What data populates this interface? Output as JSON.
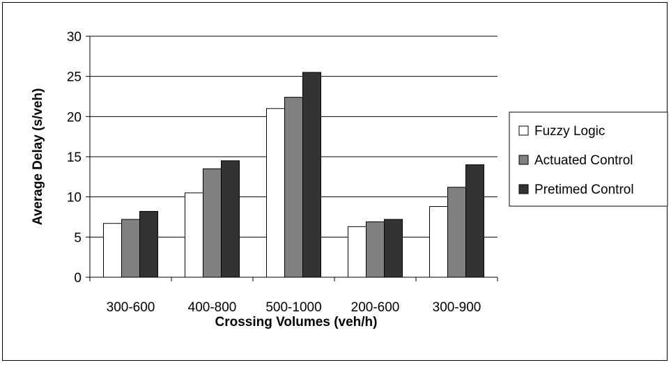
{
  "chart_data": {
    "type": "bar",
    "title": "",
    "xlabel": "Crossing Volumes (veh/h)",
    "ylabel": "Average Delay (s/veh)",
    "ylim": [
      0,
      30
    ],
    "yticks": [
      "0",
      "5",
      "10",
      "15",
      "20",
      "25",
      "30"
    ],
    "grid": "horizontal",
    "legend_position": "right",
    "categories": [
      "300-600",
      "400-800",
      "500-1000",
      "200-600",
      "300-900"
    ],
    "series": [
      {
        "name": "Fuzzy Logic",
        "color": "#ffffff",
        "values": [
          6.7,
          10.5,
          21.0,
          6.3,
          8.8
        ]
      },
      {
        "name": "Actuated Control",
        "color": "#808080",
        "values": [
          7.2,
          13.5,
          22.4,
          6.9,
          11.2
        ]
      },
      {
        "name": "Pretimed Control",
        "color": "#333333",
        "values": [
          8.2,
          14.5,
          25.5,
          7.2,
          14.0
        ]
      }
    ]
  }
}
